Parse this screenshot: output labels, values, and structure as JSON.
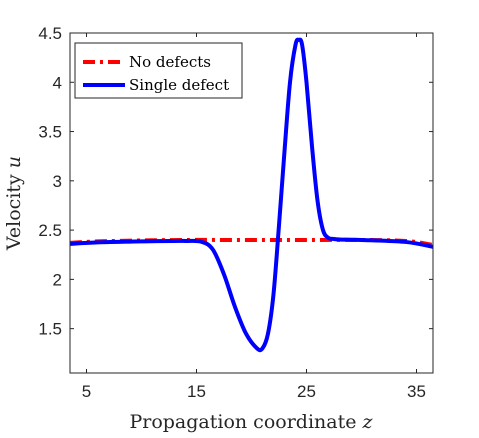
{
  "chart_data": {
    "type": "line",
    "title": "",
    "xlabel": "Propagation coordinate",
    "xlabel_var": "z",
    "ylabel": "Velocity",
    "ylabel_var": "u",
    "xlim": [
      3.5,
      36.5
    ],
    "ylim": [
      1.05,
      4.5
    ],
    "xticks": [
      5,
      15,
      25,
      35
    ],
    "yticks": [
      1.5,
      2,
      2.5,
      3,
      3.5,
      4,
      4.5
    ],
    "xtick_labels": [
      "5",
      "15",
      "25",
      "35"
    ],
    "ytick_labels": [
      "1.5",
      "2",
      "2.5",
      "3",
      "3.5",
      "4",
      "4.5"
    ],
    "grid": false,
    "legend_position": "top-left",
    "series": [
      {
        "name": "No defects",
        "color": "#ff0000",
        "style": "dash-dot",
        "x": [
          3.5,
          6,
          10,
          14,
          18,
          22,
          26,
          30,
          34,
          36.5
        ],
        "y": [
          2.37,
          2.385,
          2.395,
          2.4,
          2.4,
          2.4,
          2.4,
          2.4,
          2.39,
          2.35
        ]
      },
      {
        "name": "Single defect",
        "color": "#0000ff",
        "style": "solid",
        "x": [
          3.5,
          6,
          10,
          14,
          15.5,
          16.5,
          17.5,
          18.5,
          19.5,
          20.5,
          21,
          21.5,
          22,
          22.5,
          23,
          23.5,
          24,
          24.3,
          24.6,
          25,
          25.5,
          26,
          26.5,
          27,
          27.5,
          28,
          30,
          34,
          36.5
        ],
        "y": [
          2.36,
          2.375,
          2.385,
          2.39,
          2.38,
          2.3,
          2.05,
          1.72,
          1.45,
          1.3,
          1.3,
          1.45,
          1.85,
          2.55,
          3.3,
          4.0,
          4.38,
          4.43,
          4.38,
          4.0,
          3.35,
          2.8,
          2.5,
          2.42,
          2.41,
          2.405,
          2.4,
          2.38,
          2.33
        ]
      }
    ]
  }
}
